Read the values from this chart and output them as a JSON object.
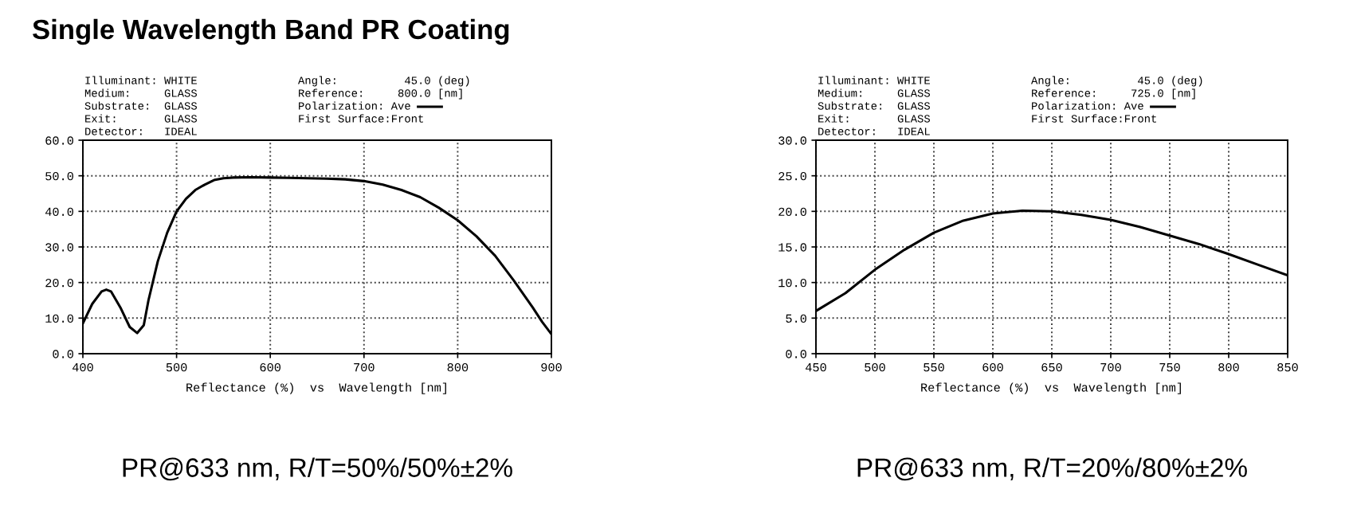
{
  "chart_data": [
    {
      "type": "line",
      "title": "Single Wavelength Band PR Coating",
      "xlabel": "Reflectance (%)  vs  Wavelength [nm]",
      "x": [
        400,
        410,
        420,
        425,
        430,
        440,
        450,
        458,
        465,
        470,
        480,
        490,
        500,
        510,
        520,
        530,
        540,
        550,
        560,
        580,
        600,
        620,
        640,
        660,
        680,
        700,
        720,
        740,
        760,
        780,
        800,
        820,
        840,
        860,
        880,
        890,
        900
      ],
      "series": [
        {
          "color": "#000000",
          "values": [
            8.5,
            14,
            17.5,
            18,
            17.5,
            13,
            7.5,
            5.8,
            8,
            15,
            26,
            34,
            40,
            43.5,
            46,
            47.5,
            48.8,
            49.3,
            49.5,
            49.6,
            49.5,
            49.4,
            49.3,
            49.2,
            49,
            48.5,
            47.5,
            46,
            44,
            41,
            37.5,
            33,
            27.5,
            20.5,
            13,
            9,
            5.5
          ]
        }
      ],
      "xlim": [
        400,
        900
      ],
      "xticks": [
        400,
        500,
        600,
        700,
        800,
        900
      ],
      "ylim": [
        0,
        60
      ],
      "yticks": [
        {
          "value": 0,
          "label": "0.0"
        },
        {
          "value": 10,
          "label": "10.0"
        },
        {
          "value": 20,
          "label": "20.0"
        },
        {
          "value": 30,
          "label": "30.0"
        },
        {
          "value": 40,
          "label": "40.0"
        },
        {
          "value": 50,
          "label": "50.0"
        },
        {
          "value": 60,
          "label": "60.0"
        }
      ],
      "grid": true,
      "line_style": "solid",
      "annotations": [
        "Illuminant: WHITE",
        "Medium:     GLASS",
        "Substrate:  GLASS",
        "Exit:       GLASS",
        "Detector:   IDEAL",
        "Angle:          45.0 (deg)",
        "Reference:     800.0 [nm]",
        "Polarization: Ave",
        "First Surface:Front",
        "PR@633 nm, R/T=50%/50%±2%"
      ]
    },
    {
      "type": "line",
      "xlabel": "Reflectance (%)  vs  Wavelength [nm]",
      "x": [
        450,
        475,
        500,
        525,
        550,
        575,
        600,
        625,
        650,
        675,
        700,
        725,
        750,
        775,
        800,
        825,
        850
      ],
      "series": [
        {
          "color": "#000000",
          "values": [
            6,
            8.5,
            11.8,
            14.6,
            17,
            18.7,
            19.7,
            20.1,
            20,
            19.5,
            18.8,
            17.8,
            16.6,
            15.4,
            14,
            12.5,
            11
          ]
        }
      ],
      "xlim": [
        450,
        850
      ],
      "xticks": [
        450,
        500,
        550,
        600,
        650,
        700,
        750,
        800,
        850
      ],
      "ylim": [
        0,
        30
      ],
      "yticks": [
        {
          "value": 0,
          "label": "0.0"
        },
        {
          "value": 5,
          "label": "5.0"
        },
        {
          "value": 10,
          "label": "10.0"
        },
        {
          "value": 15,
          "label": "15.0"
        },
        {
          "value": 20,
          "label": "20.0"
        },
        {
          "value": 25,
          "label": "25.0"
        },
        {
          "value": 30,
          "label": "30.0"
        }
      ],
      "grid": true,
      "line_style": "solid",
      "annotations": [
        "Illuminant: WHITE",
        "Medium:     GLASS",
        "Substrate:  GLASS",
        "Exit:       GLASS",
        "Detector:   IDEAL",
        "Angle:          45.0 (deg)",
        "Reference:     725.0 [nm]",
        "Polarization: Ave",
        "First Surface:Front",
        "PR@633 nm, R/T=20%/80%±2%"
      ]
    }
  ]
}
